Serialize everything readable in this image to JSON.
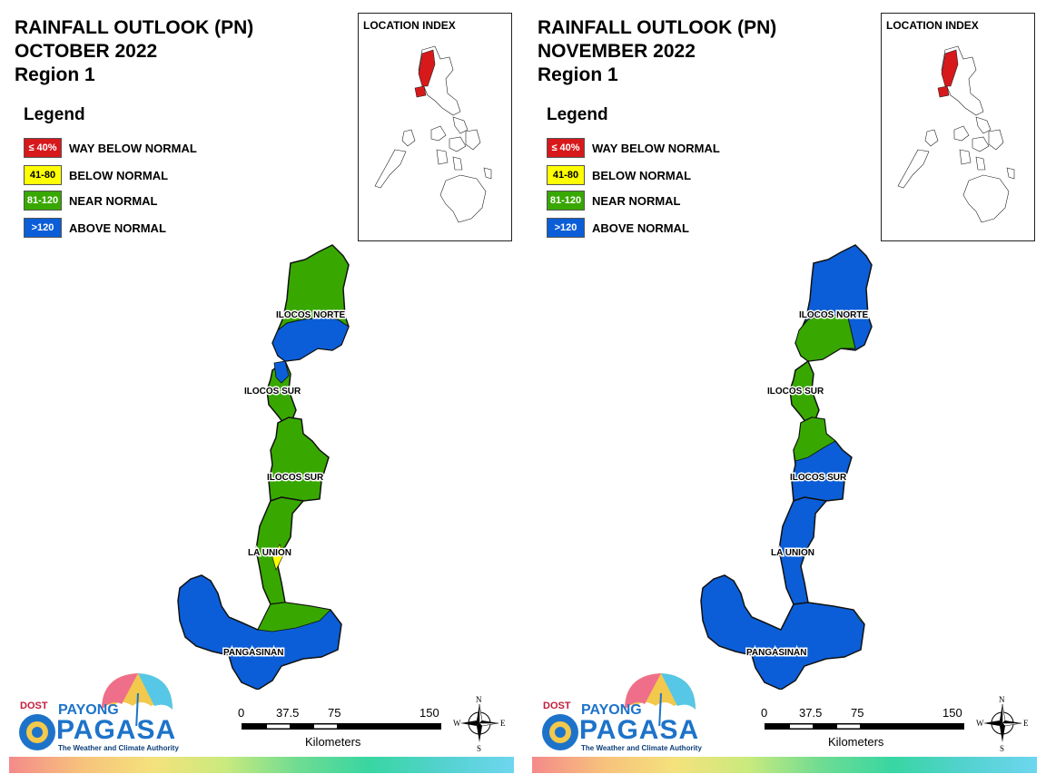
{
  "panels": [
    {
      "title_line1": "RAINFALL OUTLOOK (PN)",
      "title_line2": "OCTOBER 2022",
      "title_line3": "Region 1",
      "legend_title": "Legend",
      "legend": [
        {
          "swatch": "≤ 40%",
          "label": "WAY BELOW NORMAL",
          "color": "#d7191c"
        },
        {
          "swatch": "41-80",
          "label": "BELOW NORMAL",
          "color": "#ffff00"
        },
        {
          "swatch": "81-120",
          "label": "NEAR NORMAL",
          "color": "#38a800"
        },
        {
          "swatch": ">120",
          "label": "ABOVE NORMAL",
          "color": "#0b5ed7"
        }
      ],
      "inset_title": "LOCATION INDEX",
      "provinces": {
        "ilocos_norte": "ILOCOS NORTE",
        "ilocos_sur_north": "ILOCOS SUR",
        "ilocos_sur_south": "ILOCOS SUR",
        "la_union": "LA UNION",
        "pangasinan": "PANGASINAN"
      },
      "scale": {
        "ticks": [
          "0",
          "37.5",
          "75",
          "150"
        ],
        "unit": "Kilometers"
      },
      "compass": {
        "n": "N",
        "s": "S",
        "e": "E",
        "w": "W"
      },
      "logo": {
        "dost": "DOST",
        "payong": "PAYONG",
        "pagasa": "PAGASA",
        "tagline": "The Weather and Climate Authority"
      }
    },
    {
      "title_line1": "RAINFALL OUTLOOK (PN)",
      "title_line2": "NOVEMBER 2022",
      "title_line3": "Region 1",
      "legend_title": "Legend",
      "legend": [
        {
          "swatch": "≤ 40%",
          "label": "WAY BELOW NORMAL",
          "color": "#d7191c"
        },
        {
          "swatch": "41-80",
          "label": "BELOW NORMAL",
          "color": "#ffff00"
        },
        {
          "swatch": "81-120",
          "label": "NEAR NORMAL",
          "color": "#38a800"
        },
        {
          "swatch": ">120",
          "label": "ABOVE NORMAL",
          "color": "#0b5ed7"
        }
      ],
      "inset_title": "LOCATION INDEX",
      "provinces": {
        "ilocos_norte": "ILOCOS NORTE",
        "ilocos_sur_north": "ILOCOS SUR",
        "ilocos_sur_south": "ILOCOS SUR",
        "la_union": "LA UNION",
        "pangasinan": "PANGASINAN"
      },
      "scale": {
        "ticks": [
          "0",
          "37.5",
          "75",
          "150"
        ],
        "unit": "Kilometers"
      },
      "compass": {
        "n": "N",
        "s": "S",
        "e": "E",
        "w": "W"
      },
      "logo": {
        "dost": "DOST",
        "payong": "PAYONG",
        "pagasa": "PAGASA",
        "tagline": "The Weather and Climate Authority"
      }
    }
  ]
}
